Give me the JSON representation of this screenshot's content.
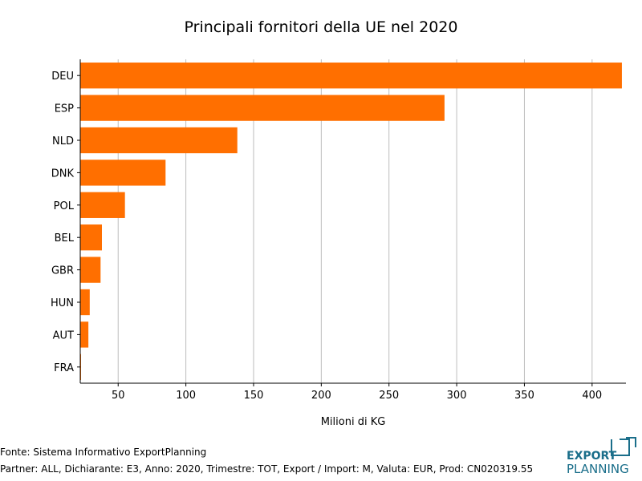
{
  "chart_data": {
    "type": "bar",
    "orientation": "horizontal",
    "title": "Principali fornitori della UE nel 2020",
    "xlabel": "Milioni di KG",
    "ylabel": "",
    "categories": [
      "DEU",
      "ESP",
      "NLD",
      "DNK",
      "POL",
      "BEL",
      "GBR",
      "HUN",
      "AUT",
      "FRA"
    ],
    "values": [
      422,
      291,
      138,
      85,
      55,
      38,
      37,
      29,
      28,
      22
    ],
    "xlim": [
      22,
      425
    ],
    "xticks": [
      50,
      100,
      150,
      200,
      250,
      300,
      350,
      400
    ],
    "grid": true,
    "legend": "none",
    "bar_color": "#ff6f00"
  },
  "footer": {
    "source": "Fonte: Sistema Informativo ExportPlanning",
    "details": "Partner: ALL, Dichiarante: E3, Anno: 2020, Trimestre: TOT, Export / Import: M, Valuta: EUR, Prod: CN020319.55"
  },
  "logo": {
    "line1": "EXPORT",
    "line2": "PLANNING",
    "color": "#1a6e8a"
  }
}
